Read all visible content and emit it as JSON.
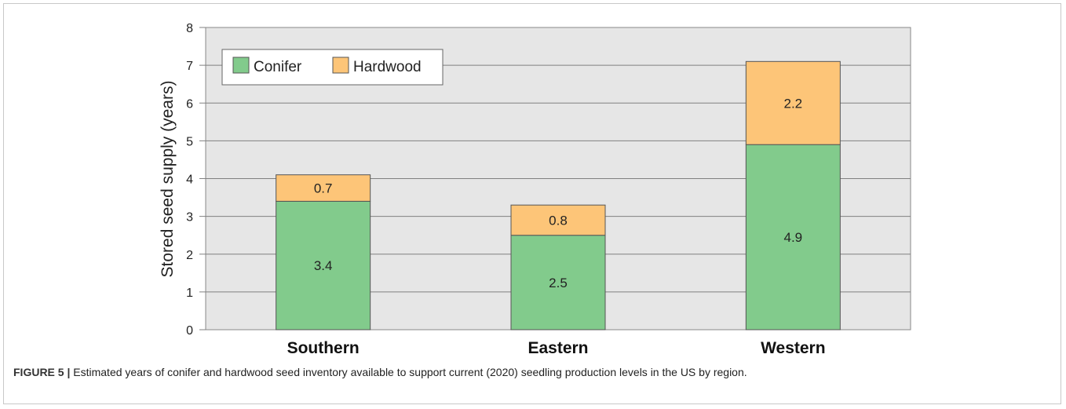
{
  "chart_data": {
    "type": "bar",
    "stacked": true,
    "categories": [
      "Southern",
      "Eastern",
      "Western"
    ],
    "series": [
      {
        "name": "Conifer",
        "values": [
          3.4,
          2.5,
          4.9
        ],
        "color": "#82cb8c"
      },
      {
        "name": "Hardwood",
        "values": [
          0.7,
          0.8,
          2.2
        ],
        "color": "#fdc578"
      }
    ],
    "ylabel": "Stored seed supply (years)",
    "ylim": [
      0,
      8
    ],
    "yticks": [
      0,
      1,
      2,
      3,
      4,
      5,
      6,
      7,
      8
    ],
    "grid": true,
    "legend_position": "top-left",
    "plot_background": "#e6e6e6"
  },
  "caption": {
    "label": "FIGURE 5 |",
    "text": " Estimated years of conifer and hardwood seed inventory available to support current (2020) seedling production levels in the US by region."
  }
}
